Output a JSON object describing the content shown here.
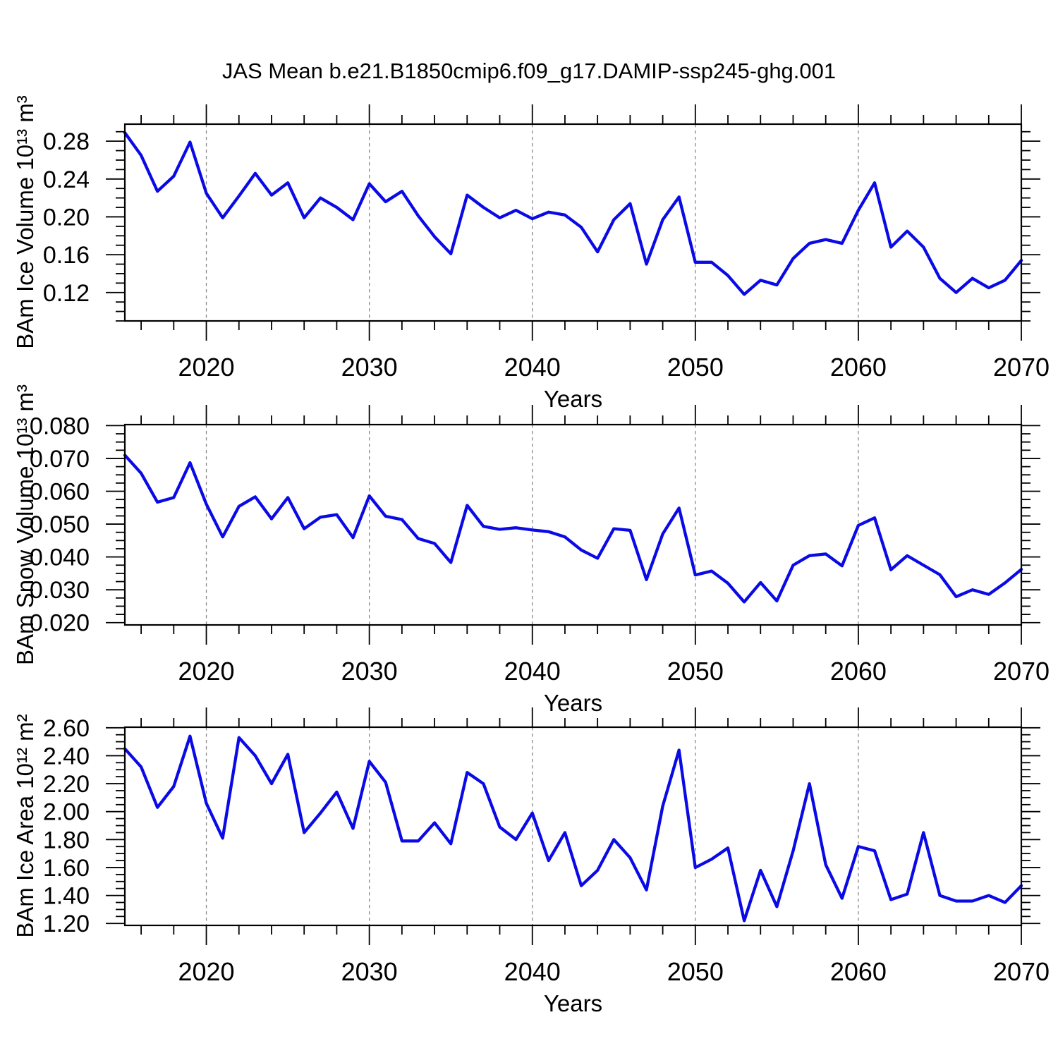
{
  "figure": {
    "title": "JAS Mean b.e21.B1850cmip6.f09_g17.DAMIP-ssp245-ghg.001",
    "line_color": "#0A0AE6",
    "grid_color": "#888888",
    "background": "#FFFFFF"
  },
  "chart_data": [
    {
      "type": "line",
      "id": "ice-volume",
      "ylabel": "BAm Ice Volume 10¹³ m³",
      "xlabel": "Years",
      "x": [
        2015,
        2016,
        2017,
        2018,
        2019,
        2020,
        2021,
        2022,
        2023,
        2024,
        2025,
        2026,
        2027,
        2028,
        2029,
        2030,
        2031,
        2032,
        2033,
        2034,
        2035,
        2036,
        2037,
        2038,
        2039,
        2040,
        2041,
        2042,
        2043,
        2044,
        2045,
        2046,
        2047,
        2048,
        2049,
        2050,
        2051,
        2052,
        2053,
        2054,
        2055,
        2056,
        2057,
        2058,
        2059,
        2060,
        2061,
        2062,
        2063,
        2064,
        2065,
        2066,
        2067,
        2068,
        2069,
        2070
      ],
      "values": [
        0.289,
        0.265,
        0.227,
        0.243,
        0.279,
        0.225,
        0.199,
        0.222,
        0.246,
        0.223,
        0.236,
        0.199,
        0.22,
        0.21,
        0.197,
        0.235,
        0.216,
        0.227,
        0.201,
        0.179,
        0.161,
        0.223,
        0.21,
        0.199,
        0.207,
        0.198,
        0.205,
        0.202,
        0.189,
        0.163,
        0.197,
        0.214,
        0.15,
        0.197,
        0.221,
        0.152,
        0.152,
        0.138,
        0.118,
        0.133,
        0.128,
        0.156,
        0.172,
        0.176,
        0.172,
        0.207,
        0.236,
        0.168,
        0.185,
        0.168,
        0.135,
        0.12,
        0.135,
        0.125,
        0.133,
        0.154
      ],
      "xlim": [
        2015,
        2070
      ],
      "ylim": [
        0.09,
        0.298
      ],
      "xticks": [
        2020,
        2030,
        2040,
        2050,
        2060,
        2070
      ],
      "xtick_labels": [
        "2020",
        "2030",
        "2040",
        "2050",
        "2060",
        "2070"
      ],
      "xminor_step": 2,
      "grid_x": [
        2020,
        2030,
        2040,
        2050,
        2060
      ],
      "yticks": [
        0.12,
        0.16,
        0.2,
        0.24,
        0.28
      ],
      "ytick_labels": [
        "0.12",
        "0.16",
        "0.20",
        "0.24",
        "0.28"
      ],
      "yminor_step": 0.01
    },
    {
      "type": "line",
      "id": "snow-volume",
      "ylabel": "BAm Snow Volume 10¹³ m³",
      "xlabel": "Years",
      "x": [
        2015,
        2016,
        2017,
        2018,
        2019,
        2020,
        2021,
        2022,
        2023,
        2024,
        2025,
        2026,
        2027,
        2028,
        2029,
        2030,
        2031,
        2032,
        2033,
        2034,
        2035,
        2036,
        2037,
        2038,
        2039,
        2040,
        2041,
        2042,
        2043,
        2044,
        2045,
        2046,
        2047,
        2048,
        2049,
        2050,
        2051,
        2052,
        2053,
        2054,
        2055,
        2056,
        2057,
        2058,
        2059,
        2060,
        2061,
        2062,
        2063,
        2064,
        2065,
        2066,
        2067,
        2068,
        2069,
        2070
      ],
      "values": [
        0.071,
        0.0655,
        0.0567,
        0.0581,
        0.0687,
        0.0561,
        0.0461,
        0.0554,
        0.0583,
        0.0516,
        0.0581,
        0.0486,
        0.0521,
        0.0529,
        0.0459,
        0.0586,
        0.0524,
        0.0514,
        0.0456,
        0.0441,
        0.0383,
        0.0557,
        0.0493,
        0.0484,
        0.0489,
        0.0482,
        0.0477,
        0.0461,
        0.0421,
        0.0396,
        0.0486,
        0.0481,
        0.0331,
        0.047,
        0.0549,
        0.0345,
        0.0357,
        0.032,
        0.0263,
        0.0322,
        0.0266,
        0.0375,
        0.0404,
        0.0409,
        0.0373,
        0.0496,
        0.0519,
        0.0361,
        0.0404,
        0.0375,
        0.0346,
        0.0279,
        0.03,
        0.0286,
        0.0321,
        0.0362
      ],
      "xlim": [
        2015,
        2070
      ],
      "ylim": [
        0.0193,
        0.0803
      ],
      "xticks": [
        2020,
        2030,
        2040,
        2050,
        2060,
        2070
      ],
      "xtick_labels": [
        "2020",
        "2030",
        "2040",
        "2050",
        "2060",
        "2070"
      ],
      "xminor_step": 2,
      "grid_x": [
        2020,
        2030,
        2040,
        2050,
        2060
      ],
      "yticks": [
        0.02,
        0.03,
        0.04,
        0.05,
        0.06,
        0.07,
        0.08
      ],
      "ytick_labels": [
        "0.020",
        "0.030",
        "0.040",
        "0.050",
        "0.060",
        "0.070",
        "0.080"
      ],
      "yminor_step": 0.0025
    },
    {
      "type": "line",
      "id": "ice-area",
      "ylabel": "BAm Ice Area 10¹² m²",
      "xlabel": "Years",
      "x": [
        2015,
        2016,
        2017,
        2018,
        2019,
        2020,
        2021,
        2022,
        2023,
        2024,
        2025,
        2026,
        2027,
        2028,
        2029,
        2030,
        2031,
        2032,
        2033,
        2034,
        2035,
        2036,
        2037,
        2038,
        2039,
        2040,
        2041,
        2042,
        2043,
        2044,
        2045,
        2046,
        2047,
        2048,
        2049,
        2050,
        2051,
        2052,
        2053,
        2054,
        2055,
        2056,
        2057,
        2058,
        2059,
        2060,
        2061,
        2062,
        2063,
        2064,
        2065,
        2066,
        2067,
        2068,
        2069,
        2070
      ],
      "values": [
        2.45,
        2.32,
        2.03,
        2.18,
        2.54,
        2.06,
        1.81,
        2.53,
        2.4,
        2.2,
        2.41,
        1.85,
        1.99,
        2.14,
        1.88,
        2.36,
        2.21,
        1.79,
        1.79,
        1.92,
        1.77,
        2.28,
        2.2,
        1.89,
        1.8,
        1.99,
        1.65,
        1.85,
        1.47,
        1.58,
        1.8,
        1.67,
        1.44,
        2.04,
        2.44,
        1.6,
        1.66,
        1.74,
        1.22,
        1.58,
        1.32,
        1.72,
        2.2,
        1.62,
        1.38,
        1.75,
        1.72,
        1.37,
        1.41,
        1.85,
        1.4,
        1.36,
        1.36,
        1.4,
        1.35,
        1.47
      ],
      "xlim": [
        2015,
        2070
      ],
      "ylim": [
        1.186,
        2.604
      ],
      "xticks": [
        2020,
        2030,
        2040,
        2050,
        2060,
        2070
      ],
      "xtick_labels": [
        "2020",
        "2030",
        "2040",
        "2050",
        "2060",
        "2070"
      ],
      "xminor_step": 2,
      "grid_x": [
        2020,
        2030,
        2040,
        2050,
        2060
      ],
      "yticks": [
        1.2,
        1.4,
        1.6,
        1.8,
        2.0,
        2.2,
        2.4,
        2.6
      ],
      "ytick_labels": [
        "1.20",
        "1.40",
        "1.60",
        "1.80",
        "2.00",
        "2.20",
        "2.40",
        "2.60"
      ],
      "yminor_step": 0.05
    }
  ]
}
